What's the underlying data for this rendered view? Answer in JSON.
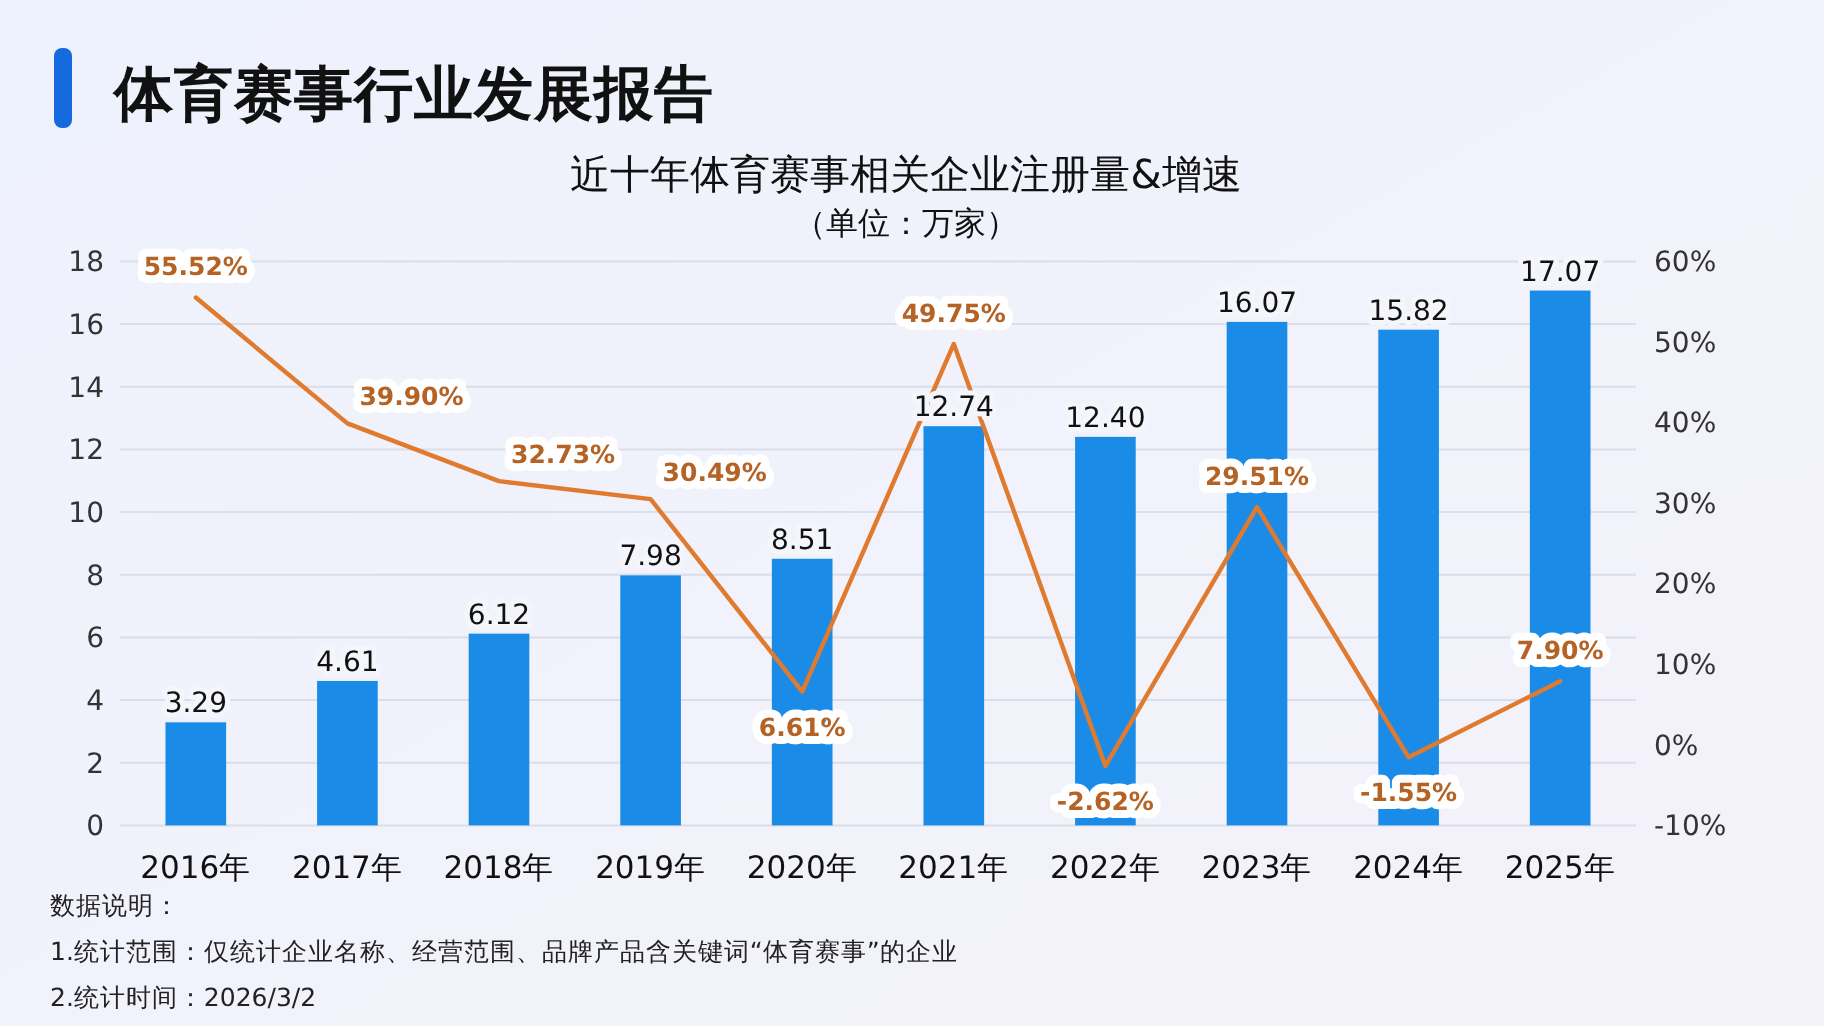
{
  "chart_data": {
    "type": "bar",
    "title": "近十年体育赛事相关企业注册量&增速",
    "subtitle": "（单位：万家）",
    "annotations": [
      "体育赛事行业发展报告",
      "数据说明：",
      "1.统计范围：仅统计企业名称、经营范围、品牌产品含关键词“体育赛事”的企业",
      "2.统计时间：2026/3/2"
    ],
    "categories": [
      "2016年",
      "2017年",
      "2018年",
      "2019年",
      "2020年",
      "2021年",
      "2022年",
      "2023年",
      "2024年",
      "2025年"
    ],
    "series": [
      {
        "color": "#1a8ce8",
        "values": [
          3.29,
          4.61,
          6.12,
          7.98,
          8.51,
          12.74,
          12.4,
          16.07,
          15.82,
          17.07
        ],
        "value_labels": [
          "3.29",
          "4.61",
          "6.12",
          "7.98",
          "8.51",
          "12.74",
          "12.40",
          "16.07",
          "15.82",
          "17.07"
        ]
      },
      {
        "type": "line",
        "axis": "y2",
        "color": "#e07a2e",
        "values": [
          55.52,
          39.9,
          32.73,
          30.49,
          6.61,
          49.75,
          -2.62,
          29.51,
          -1.55,
          7.9
        ],
        "value_labels": [
          "55.52%",
          "39.90%",
          "32.73%",
          "30.49%",
          "6.61%",
          "49.75%",
          "-2.62%",
          "29.51%",
          "-1.55%",
          "7.90%"
        ]
      }
    ],
    "ylim": [
      0,
      18
    ],
    "yticks": [
      0,
      2,
      4,
      6,
      8,
      10,
      12,
      14,
      16,
      18
    ],
    "y2lim": [
      -10,
      60
    ],
    "y2ticks": [
      {
        "value": -10,
        "label": "-10%"
      },
      {
        "value": 0,
        "label": "0%"
      },
      {
        "value": 10,
        "label": "10%"
      },
      {
        "value": 20,
        "label": "20%"
      },
      {
        "value": 30,
        "label": "30%"
      },
      {
        "value": 40,
        "label": "40%"
      },
      {
        "value": 50,
        "label": "50%"
      },
      {
        "value": 60,
        "label": "60%"
      }
    ],
    "grid": "y"
  }
}
